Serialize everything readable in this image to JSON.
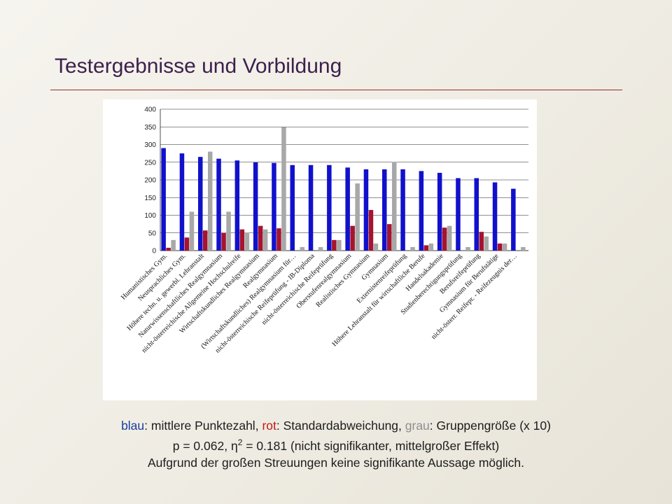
{
  "slide": {
    "title": "Testergebnisse und Vorbildung"
  },
  "caption": {
    "line1": {
      "blue_word": "blau",
      "blue_text": ": mittlere Punktezahl, ",
      "red_word": "rot",
      "red_text": ": Standardabweichung, ",
      "gray_word": "grau",
      "gray_text": ": Gruppengröße (x 10)"
    },
    "line2": {
      "prefix": "p = 0.062, ",
      "eta": "η",
      "eta_exp": "2",
      "suffix": " = 0.181 (nicht signifikanter, mittelgroßer Effekt)"
    },
    "line3": "Aufgrund der großen Streuungen keine signifikante Aussage möglich."
  },
  "colors": {
    "blue": "#1111cc",
    "red": "#a4142e",
    "gray": "#a8a8a8",
    "title": "#3d1f4d",
    "rule": "#9a2b2b"
  },
  "chart_data": {
    "type": "bar",
    "ylim": [
      0,
      400
    ],
    "yticks": [
      "0",
      "50",
      "100",
      "150",
      "200",
      "250",
      "300",
      "350",
      "400"
    ],
    "grid": true,
    "legend": "none",
    "categories": [
      "Humanistisches Gym.",
      "Neusprachliches Gym.",
      "Höhere techn. u. gewerbl. Lehranstalt",
      "Naturwissenschaftliches Realgymnasium",
      "nicht-österreichische Allgemeine Hochschulreife",
      "Wirtschaftskundliches Realgymnasium",
      "Realgymnasium",
      "(Wirtschaftskundliches) Realgymnasium für…",
      "nicht-österreichische Reifeprüfung - IB-Diploma",
      "nicht-österreichische Reifeprüfung",
      "Oberstufenrealgymnasium",
      "Realistisches Gymnasium",
      "Gymnasium",
      "Externistenreifeprüfung",
      "Höhere Lehranstalt für wirtschaftliche Berufe",
      "Handelsakademie",
      "Studienberechtigungsprüfung",
      "Berufsreifeprüfung",
      "Gymnasium für Berufstätige",
      "nicht-österr. Reifepr. - Reifezeugnis der…"
    ],
    "series": [
      {
        "values": [
          290,
          275,
          265,
          260,
          255,
          250,
          248,
          242,
          242,
          242,
          235,
          230,
          230,
          230,
          225,
          220,
          205,
          205,
          193,
          175
        ]
      },
      {
        "values": [
          8,
          37,
          57,
          50,
          60,
          70,
          63,
          0,
          0,
          30,
          70,
          115,
          75,
          0,
          15,
          65,
          0,
          53,
          20,
          0
        ]
      },
      {
        "values": [
          30,
          110,
          280,
          110,
          50,
          60,
          350,
          10,
          10,
          30,
          190,
          20,
          250,
          10,
          20,
          70,
          10,
          40,
          20,
          10
        ]
      }
    ]
  }
}
